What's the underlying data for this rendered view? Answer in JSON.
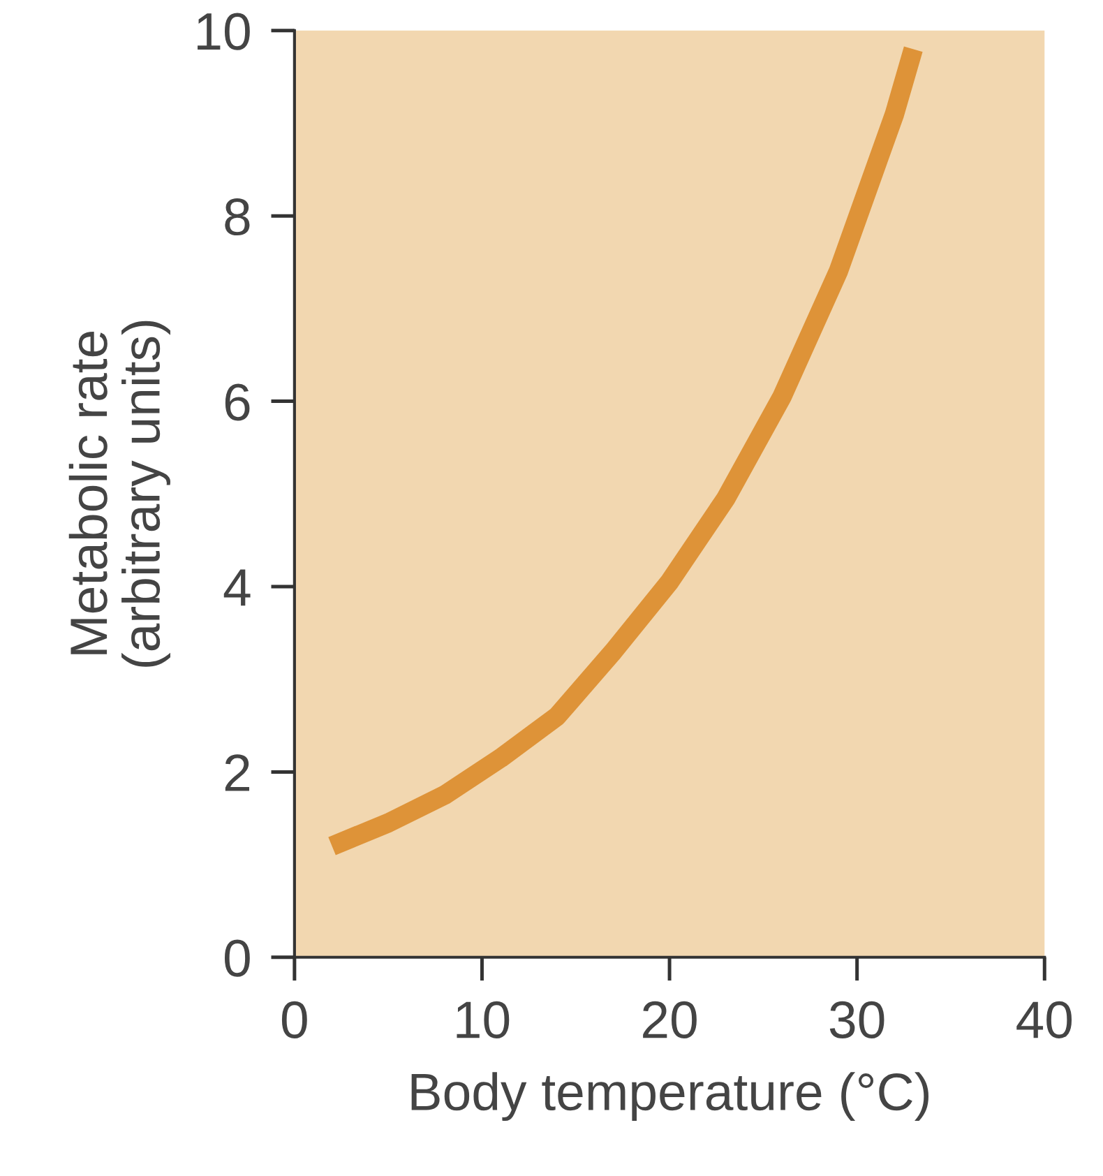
{
  "chart_data": {
    "type": "line",
    "xlabel": "Body temperature (°C)",
    "ylabel": "Metabolic rate\n(arbitrary units)",
    "series": [
      {
        "color": "#de9338",
        "x": [
          2,
          5,
          8,
          11,
          14,
          17,
          20,
          23,
          26,
          29,
          32,
          33
        ],
        "values": [
          1.2,
          1.45,
          1.75,
          2.15,
          2.6,
          3.3,
          4.05,
          4.95,
          6.05,
          7.4,
          9.1,
          9.8
        ]
      }
    ],
    "xlim": [
      0,
      40
    ],
    "ylim": [
      0,
      10
    ],
    "xticks": [
      0,
      10,
      20,
      30,
      40
    ],
    "yticks": [
      0,
      2,
      4,
      6,
      8,
      10
    ],
    "grid": false,
    "legend": false,
    "marker": "none",
    "line_style": "solid"
  }
}
